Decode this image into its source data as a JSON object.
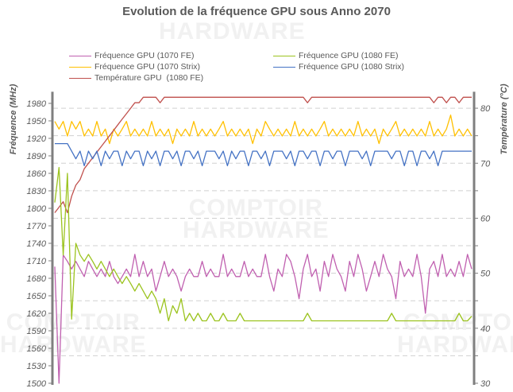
{
  "chart_data": {
    "type": "line",
    "title": "Evolution de la fréquence GPU sous Anno 2070",
    "ylabel": "Fréquence (MHz)",
    "y2label": "Température (°C)",
    "ylim": [
      1500,
      2000
    ],
    "y2lim": [
      30,
      83
    ],
    "yticks": [
      1500,
      1530,
      1560,
      1590,
      1620,
      1650,
      1680,
      1710,
      1740,
      1770,
      1800,
      1830,
      1860,
      1890,
      1920,
      1950,
      1980
    ],
    "y2ticks": [
      30,
      40,
      50,
      60,
      70,
      80
    ],
    "grid": "dashed horizontal every 5 °C",
    "legend": "top",
    "watermark": "Le COMPTOIR du HARDWARE",
    "series": [
      {
        "name": "Fréquence GPU (1070 FE)",
        "axis": "left",
        "color": "#c060b0",
        "values": [
          1700,
          1500,
          1720,
          1709,
          1696,
          1709,
          1696,
          1683,
          1709,
          1696,
          1683,
          1696,
          1683,
          1709,
          1683,
          1671,
          1683,
          1696,
          1683,
          1721,
          1683,
          1709,
          1683,
          1696,
          1658,
          1683,
          1709,
          1683,
          1696,
          1683,
          1658,
          1683,
          1696,
          1683,
          1683,
          1709,
          1683,
          1696,
          1683,
          1683,
          1721,
          1683,
          1696,
          1683,
          1683,
          1709,
          1683,
          1696,
          1683,
          1683,
          1721,
          1683,
          1658,
          1696,
          1683,
          1721,
          1709,
          1683,
          1645,
          1696,
          1721,
          1683,
          1696,
          1658,
          1709,
          1683,
          1721,
          1696,
          1683,
          1658,
          1709,
          1683,
          1721,
          1696,
          1658,
          1683,
          1709,
          1683,
          1721,
          1696,
          1683,
          1645,
          1709,
          1683,
          1696,
          1683,
          1721,
          1683,
          1620,
          1696,
          1709,
          1683,
          1721,
          1683,
          1696,
          1683,
          1709,
          1683,
          1721,
          1696
        ]
      },
      {
        "name": "Fréquence GPU (1070 Strix)",
        "axis": "left",
        "color": "#ffc000",
        "values": [
          1949,
          1936,
          1949,
          1924,
          1949,
          1936,
          1949,
          1924,
          1936,
          1924,
          1949,
          1924,
          1936,
          1911,
          1936,
          1924,
          1936,
          1949,
          1924,
          1936,
          1924,
          1936,
          1924,
          1949,
          1924,
          1936,
          1924,
          1936,
          1911,
          1936,
          1924,
          1936,
          1924,
          1949,
          1924,
          1936,
          1924,
          1936,
          1924,
          1936,
          1949,
          1924,
          1936,
          1924,
          1936,
          1924,
          1936,
          1911,
          1936,
          1924,
          1949,
          1936,
          1924,
          1936,
          1924,
          1936,
          1924,
          1949,
          1924,
          1936,
          1924,
          1936,
          1924,
          1936,
          1949,
          1924,
          1936,
          1924,
          1936,
          1924,
          1936,
          1924,
          1949,
          1924,
          1936,
          1924,
          1936,
          1911,
          1936,
          1924,
          1936,
          1949,
          1924,
          1936,
          1924,
          1936,
          1924,
          1936,
          1924,
          1949,
          1924,
          1936,
          1924,
          1936,
          1960,
          1924,
          1936,
          1924,
          1936,
          1924
        ]
      },
      {
        "name": "Température GPU  (1080 FE)",
        "axis": "right",
        "color": "#c0504d",
        "values": [
          61,
          62,
          63,
          61,
          64,
          66,
          67,
          69,
          70,
          71,
          72,
          73,
          74,
          75,
          76,
          77,
          78,
          79,
          80,
          81,
          81,
          82,
          82,
          82,
          82,
          81,
          82,
          82,
          82,
          82,
          82,
          82,
          82,
          82,
          82,
          82,
          82,
          82,
          82,
          82,
          82,
          82,
          82,
          82,
          82,
          82,
          82,
          82,
          82,
          82,
          82,
          82,
          82,
          82,
          82,
          82,
          82,
          82,
          82,
          82,
          81,
          82,
          82,
          82,
          82,
          82,
          82,
          82,
          82,
          82,
          82,
          82,
          82,
          82,
          82,
          82,
          82,
          82,
          82,
          82,
          82,
          82,
          82,
          82,
          82,
          82,
          82,
          82,
          82,
          82,
          81,
          82,
          82,
          81,
          82,
          82,
          81,
          82,
          82,
          82
        ]
      },
      {
        "name": "Fréquence GPU (1080 FE)",
        "axis": "left",
        "color": "#9bc31e",
        "values": [
          1810,
          1870,
          1720,
          1860,
          1610,
          1740,
          1720,
          1709,
          1721,
          1709,
          1696,
          1709,
          1696,
          1683,
          1696,
          1683,
          1671,
          1683,
          1671,
          1658,
          1671,
          1658,
          1645,
          1658,
          1645,
          1620,
          1645,
          1607,
          1633,
          1620,
          1645,
          1607,
          1620,
          1607,
          1620,
          1607,
          1607,
          1620,
          1607,
          1607,
          1620,
          1607,
          1607,
          1607,
          1620,
          1607,
          1607,
          1607,
          1607,
          1607,
          1607,
          1607,
          1607,
          1607,
          1607,
          1607,
          1607,
          1607,
          1607,
          1607,
          1620,
          1607,
          1607,
          1607,
          1607,
          1607,
          1607,
          1607,
          1607,
          1607,
          1607,
          1607,
          1607,
          1607,
          1607,
          1607,
          1607,
          1607,
          1607,
          1607,
          1620,
          1607,
          1607,
          1607,
          1607,
          1607,
          1607,
          1607,
          1607,
          1607,
          1607,
          1607,
          1607,
          1607,
          1607,
          1607,
          1620,
          1607,
          1607,
          1615
        ]
      },
      {
        "name": "Fréquence GPU (1080 Strix)",
        "axis": "left",
        "color": "#4472c4",
        "values": [
          1911,
          1911,
          1911,
          1911,
          1898,
          1885,
          1898,
          1873,
          1898,
          1885,
          1898,
          1873,
          1898,
          1885,
          1898,
          1898,
          1873,
          1898,
          1885,
          1898,
          1898,
          1873,
          1898,
          1885,
          1898,
          1873,
          1898,
          1898,
          1885,
          1898,
          1873,
          1898,
          1898,
          1885,
          1898,
          1873,
          1898,
          1898,
          1898,
          1885,
          1898,
          1873,
          1898,
          1885,
          1898,
          1898,
          1873,
          1898,
          1898,
          1885,
          1898,
          1873,
          1898,
          1898,
          1898,
          1885,
          1898,
          1873,
          1898,
          1898,
          1885,
          1898,
          1898,
          1873,
          1898,
          1898,
          1885,
          1898,
          1898,
          1873,
          1898,
          1898,
          1898,
          1885,
          1898,
          1873,
          1898,
          1898,
          1898,
          1898,
          1885,
          1898,
          1898,
          1873,
          1898,
          1898,
          1873,
          1898,
          1898,
          1885,
          1898,
          1873,
          1898,
          1898,
          1898,
          1898,
          1898,
          1898,
          1898,
          1898
        ]
      }
    ]
  }
}
